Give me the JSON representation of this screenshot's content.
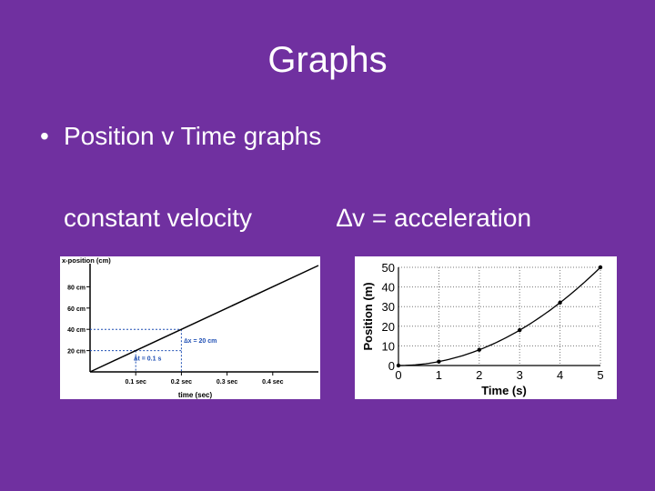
{
  "slide": {
    "title": "Graphs",
    "bullet": "Position v Time graphs",
    "left_caption": "constant velocity",
    "right_caption": "∆v = acceleration"
  },
  "chart_data": [
    {
      "type": "line",
      "title": "",
      "ylabel": "x-position (cm)",
      "xlabel": "time (sec)",
      "x_ticks": [
        "0.1 sec",
        "0.2 sec",
        "0.3 sec",
        "0.4 sec"
      ],
      "x_tick_values": [
        0.1,
        0.2,
        0.3,
        0.4
      ],
      "y_ticks": [
        "20 cm",
        "40 cm",
        "60 cm",
        "80 cm"
      ],
      "y_tick_values": [
        20,
        40,
        60,
        80
      ],
      "xlim": [
        0,
        0.5
      ],
      "ylim": [
        0,
        100
      ],
      "series": [
        {
          "values": [
            [
              0,
              0
            ],
            [
              0.5,
              100
            ]
          ]
        }
      ],
      "annotations": [
        {
          "text": "∆x = 20 cm"
        },
        {
          "text": "∆t = 0.1 s"
        }
      ],
      "guides": {
        "x": [
          0.1,
          0.2
        ],
        "y": [
          20,
          40
        ]
      }
    },
    {
      "type": "line",
      "title": "",
      "ylabel": "Position (m)",
      "xlabel": "Time (s)",
      "x_ticks": [
        "0",
        "1",
        "2",
        "3",
        "4",
        "5"
      ],
      "x_tick_values": [
        0,
        1,
        2,
        3,
        4,
        5
      ],
      "y_ticks": [
        "0",
        "10",
        "20",
        "30",
        "40",
        "50"
      ],
      "y_tick_values": [
        0,
        10,
        20,
        30,
        40,
        50
      ],
      "xlim": [
        0,
        5
      ],
      "ylim": [
        0,
        50
      ],
      "grid": true,
      "series": [
        {
          "values": [
            [
              0,
              0
            ],
            [
              1,
              2
            ],
            [
              2,
              8
            ],
            [
              3,
              18
            ],
            [
              4,
              32
            ],
            [
              5,
              50
            ]
          ]
        }
      ]
    }
  ]
}
